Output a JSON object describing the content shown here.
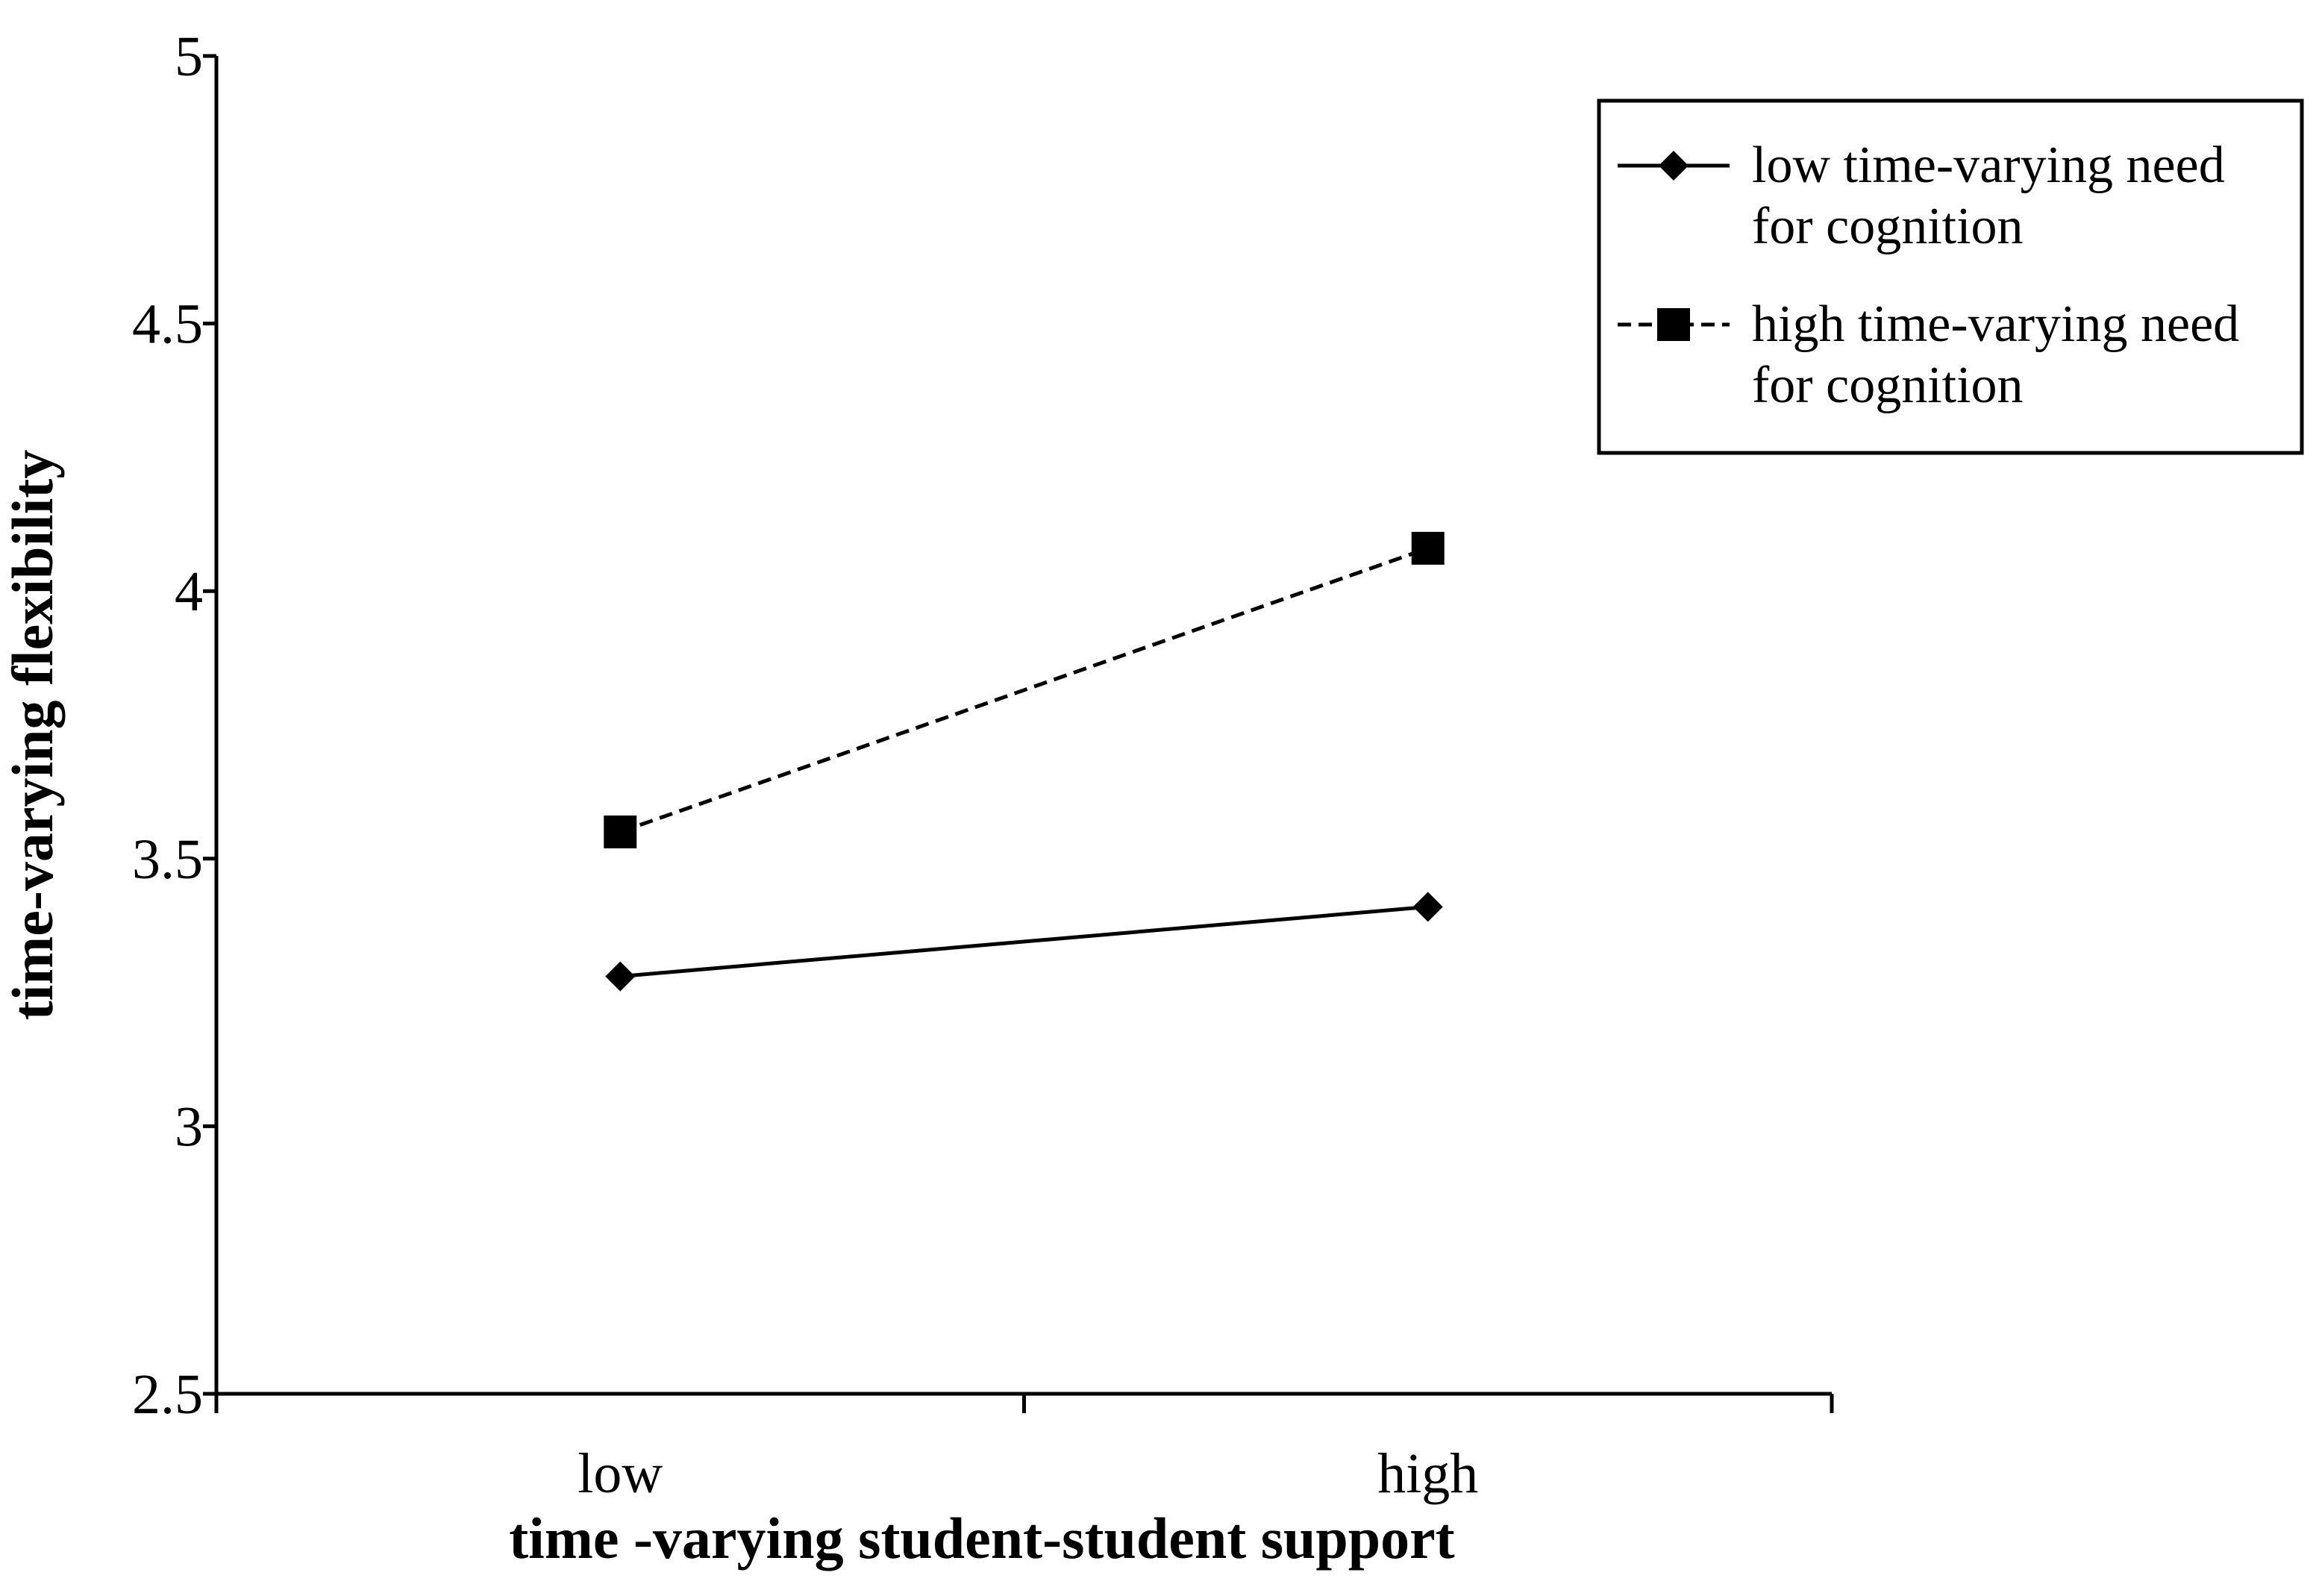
{
  "chart_data": {
    "type": "line",
    "title": "",
    "xlabel": "time -varying  student-student support",
    "ylabel": "time-varying flexibility",
    "categories": [
      "low",
      "high"
    ],
    "ylim": [
      2.5,
      5
    ],
    "yticks": [
      "2.5",
      "3",
      "3.5",
      "4",
      "4.5",
      "5"
    ],
    "grid": false,
    "legend_position": "top-right",
    "series": [
      {
        "name_lines": [
          "low time-varying need",
          "for cognition"
        ],
        "values": [
          3.28,
          3.41
        ],
        "line_style": "solid",
        "marker": "diamond",
        "color": "#000000"
      },
      {
        "name_lines": [
          "high time-varying need",
          "for cognition"
        ],
        "values": [
          3.55,
          4.08
        ],
        "line_style": "dashed",
        "marker": "square",
        "color": "#000000"
      }
    ]
  }
}
